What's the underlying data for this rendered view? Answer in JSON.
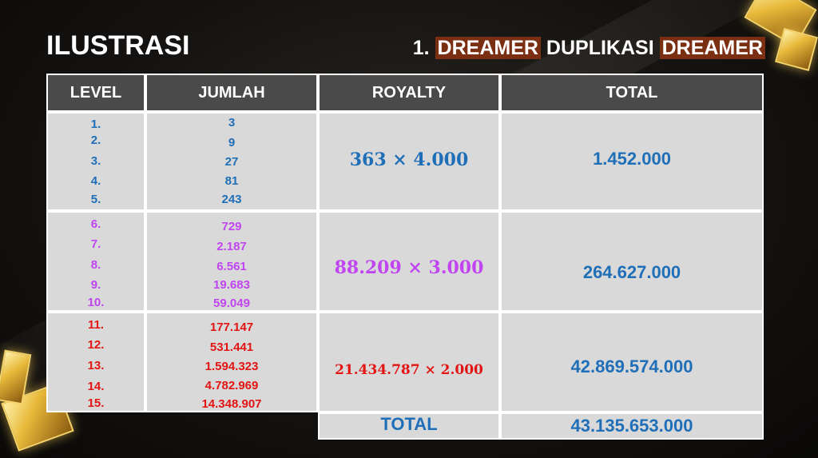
{
  "title": "ILUSTRASI",
  "subtitle": {
    "prefix": "1.",
    "word1": "DREAMER",
    "middle": "DUPLIKASI",
    "word2": "DREAMER"
  },
  "table": {
    "headers": {
      "level": "LEVEL",
      "jumlah": "JUMLAH",
      "royalty": "ROYALTY",
      "total": "TOTAL"
    },
    "groups": [
      {
        "levels": [
          "1.",
          "2.",
          "3.",
          "4.",
          "5."
        ],
        "jumlah": [
          "3",
          "9",
          "27",
          "81",
          "243"
        ],
        "royalty": "363 × 4.000",
        "total": "1.452.000",
        "color": "#1f6fb8"
      },
      {
        "levels": [
          "6.",
          "7.",
          "8.",
          "9.",
          "10."
        ],
        "jumlah": [
          "729",
          "2.187",
          "6.561",
          "19.683",
          "59.049"
        ],
        "royalty": "88.209 × 3.000",
        "total": "264.627.000",
        "color": "#c045f0"
      },
      {
        "levels": [
          "11.",
          "12.",
          "13.",
          "14.",
          "15."
        ],
        "jumlah": [
          "177.147",
          "531.441",
          "1.594.323",
          "4.782.969",
          "14.348.907"
        ],
        "royalty": "21.434.787 × 2.000",
        "total": "42.869.574.000",
        "color": "#e31414"
      }
    ],
    "grand_total_label": "TOTAL",
    "grand_total_value": "43.135.653.000"
  }
}
